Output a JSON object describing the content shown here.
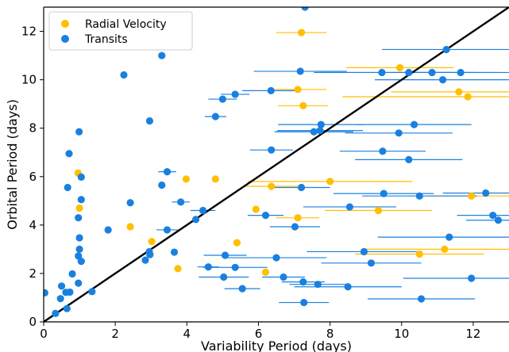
{
  "chart_data": {
    "type": "scatter",
    "xlabel": "Variability Period (days)",
    "ylabel": "Orbital Period (days)",
    "xlim": [
      0,
      13
    ],
    "ylim": [
      0,
      13
    ],
    "x_ticks": [
      "0",
      "2",
      "4",
      "6",
      "8",
      "10",
      "12"
    ],
    "y_ticks": [
      "0",
      "2",
      "4",
      "6",
      "8",
      "10",
      "12"
    ],
    "legend_position": "top-left",
    "reference_line": {
      "type": "y=x",
      "color": "#000000"
    },
    "series": [
      {
        "name": "Radial Velocity",
        "color": "#ffbf00",
        "points": [
          {
            "x": 0.96,
            "y": 6.15
          },
          {
            "x": 1.0,
            "y": 4.7
          },
          {
            "x": 2.42,
            "y": 3.93
          },
          {
            "x": 3.02,
            "y": 3.32
          },
          {
            "x": 3.75,
            "y": 2.2
          },
          {
            "x": 3.98,
            "y": 5.9
          },
          {
            "x": 4.8,
            "y": 5.9
          },
          {
            "x": 5.4,
            "y": 3.27
          },
          {
            "x": 5.93,
            "y": 4.65
          },
          {
            "x": 6.2,
            "y": 2.05
          },
          {
            "x": 6.36,
            "y": 5.6,
            "xerr": 0.8
          },
          {
            "x": 7.1,
            "y": 9.6,
            "xerr": 0.8
          },
          {
            "x": 7.2,
            "y": 11.95,
            "xerr": 0.7
          },
          {
            "x": 7.25,
            "y": 8.93,
            "xerr": 0.7
          },
          {
            "x": 7.1,
            "y": 4.3,
            "xerr": 0.6
          },
          {
            "x": 8.0,
            "y": 5.8,
            "xerr": 2.3
          },
          {
            "x": 9.35,
            "y": 4.6,
            "xerr": 1.5
          },
          {
            "x": 9.95,
            "y": 10.5,
            "xerr": 1.5
          },
          {
            "x": 10.5,
            "y": 2.8,
            "xerr": 1.8
          },
          {
            "x": 11.2,
            "y": 3.0,
            "xerr": 2.2
          },
          {
            "x": 11.6,
            "y": 9.5,
            "xerr": 1.9
          },
          {
            "x": 11.85,
            "y": 9.3,
            "xerr": 3.5
          },
          {
            "x": 11.95,
            "y": 5.2,
            "xerr": 1.2
          }
        ]
      },
      {
        "name": "Transits",
        "color": "#1a80e0",
        "points": [
          {
            "x": 0.03,
            "y": 1.2
          },
          {
            "x": 0.33,
            "y": 0.35
          },
          {
            "x": 0.47,
            "y": 0.96
          },
          {
            "x": 0.5,
            "y": 1.48
          },
          {
            "x": 0.62,
            "y": 1.22
          },
          {
            "x": 0.65,
            "y": 0.55
          },
          {
            "x": 0.67,
            "y": 5.55
          },
          {
            "x": 0.71,
            "y": 6.95
          },
          {
            "x": 0.8,
            "y": 1.98
          },
          {
            "x": 0.73,
            "y": 1.23
          },
          {
            "x": 0.97,
            "y": 1.6
          },
          {
            "x": 0.97,
            "y": 2.72
          },
          {
            "x": 1.0,
            "y": 3.0
          },
          {
            "x": 0.97,
            "y": 4.3
          },
          {
            "x": 1.0,
            "y": 3.47
          },
          {
            "x": 1.05,
            "y": 2.5
          },
          {
            "x": 1.05,
            "y": 5.05
          },
          {
            "x": 1.05,
            "y": 5.98
          },
          {
            "x": 0.99,
            "y": 7.85
          },
          {
            "x": 1.35,
            "y": 1.25
          },
          {
            "x": 1.8,
            "y": 3.8
          },
          {
            "x": 2.24,
            "y": 10.2
          },
          {
            "x": 2.42,
            "y": 4.92
          },
          {
            "x": 2.84,
            "y": 2.55
          },
          {
            "x": 2.95,
            "y": 2.9
          },
          {
            "x": 2.97,
            "y": 2.78
          },
          {
            "x": 2.96,
            "y": 8.3
          },
          {
            "x": 3.3,
            "y": 11.0
          },
          {
            "x": 3.3,
            "y": 5.65
          },
          {
            "x": 3.45,
            "y": 6.2,
            "xerr": 0.25
          },
          {
            "x": 3.45,
            "y": 3.8,
            "xerr": 0.3
          },
          {
            "x": 3.65,
            "y": 2.88
          },
          {
            "x": 3.83,
            "y": 4.95,
            "xerr": 0.25
          },
          {
            "x": 4.25,
            "y": 4.23
          },
          {
            "x": 4.45,
            "y": 4.6,
            "xerr": 0.35
          },
          {
            "x": 4.6,
            "y": 2.27,
            "xerr": 0.3
          },
          {
            "x": 4.8,
            "y": 8.48,
            "xerr": 0.3
          },
          {
            "x": 5.0,
            "y": 9.2,
            "xerr": 0.4
          },
          {
            "x": 5.03,
            "y": 1.85,
            "xerr": 0.7
          },
          {
            "x": 5.07,
            "y": 2.75,
            "xerr": 0.6
          },
          {
            "x": 5.35,
            "y": 2.25,
            "xerr": 0.9
          },
          {
            "x": 5.35,
            "y": 9.4,
            "xerr": 0.4
          },
          {
            "x": 5.55,
            "y": 1.37,
            "xerr": 0.5
          },
          {
            "x": 6.2,
            "y": 4.4,
            "xerr": 0.5
          },
          {
            "x": 6.35,
            "y": 9.55,
            "xerr": 0.8
          },
          {
            "x": 6.36,
            "y": 7.1,
            "xerr": 0.6
          },
          {
            "x": 6.5,
            "y": 2.65,
            "xerr": 1.4
          },
          {
            "x": 6.7,
            "y": 1.85,
            "xerr": 0.6
          },
          {
            "x": 7.02,
            "y": 3.93,
            "xerr": 0.7
          },
          {
            "x": 7.17,
            "y": 10.35,
            "xerr": 1.3
          },
          {
            "x": 7.2,
            "y": 5.55,
            "xerr": 0.8
          },
          {
            "x": 7.25,
            "y": 1.65,
            "xerr": 0.6
          },
          {
            "x": 7.27,
            "y": 0.8,
            "xerr": 0.7
          },
          {
            "x": 7.3,
            "y": 13.0
          },
          {
            "x": 7.66,
            "y": 1.55,
            "xerr": 0.8
          },
          {
            "x": 7.72,
            "y": 7.9,
            "xerr": 1.2
          },
          {
            "x": 7.75,
            "y": 8.15,
            "xerr": 1.2
          },
          {
            "x": 7.55,
            "y": 7.85,
            "xerr": 1.1
          },
          {
            "x": 8.5,
            "y": 1.45,
            "xerr": 1.5
          },
          {
            "x": 8.55,
            "y": 4.75,
            "xerr": 1.3
          },
          {
            "x": 8.95,
            "y": 2.9,
            "xerr": 1.6
          },
          {
            "x": 9.15,
            "y": 2.43,
            "xerr": 1.4
          },
          {
            "x": 9.45,
            "y": 10.3,
            "xerr": 1.9
          },
          {
            "x": 9.47,
            "y": 7.05,
            "xerr": 1.2
          },
          {
            "x": 9.5,
            "y": 5.3,
            "xerr": 1.4
          },
          {
            "x": 9.92,
            "y": 7.8,
            "xerr": 1.5
          },
          {
            "x": 10.2,
            "y": 10.3,
            "xerr": 2.5
          },
          {
            "x": 10.2,
            "y": 6.7,
            "xerr": 1.5
          },
          {
            "x": 10.35,
            "y": 8.15,
            "xerr": 1.6
          },
          {
            "x": 10.5,
            "y": 5.2,
            "xerr": 1.6
          },
          {
            "x": 10.55,
            "y": 0.95,
            "xerr": 1.5
          },
          {
            "x": 10.85,
            "y": 10.3,
            "xerr": 1.2
          },
          {
            "x": 11.15,
            "y": 10.0,
            "xerr": 1.9
          },
          {
            "x": 11.25,
            "y": 11.25,
            "xerr": 1.8
          },
          {
            "x": 11.33,
            "y": 3.5,
            "xerr": 2.0
          },
          {
            "x": 11.65,
            "y": 10.3,
            "xerr": 1.4
          },
          {
            "x": 11.95,
            "y": 1.8,
            "xerr": 1.9
          },
          {
            "x": 12.35,
            "y": 5.32,
            "xerr": 1.2
          },
          {
            "x": 12.55,
            "y": 4.4,
            "xerr": 1.0
          },
          {
            "x": 12.7,
            "y": 4.2,
            "xerr": 0.9
          }
        ]
      }
    ]
  }
}
